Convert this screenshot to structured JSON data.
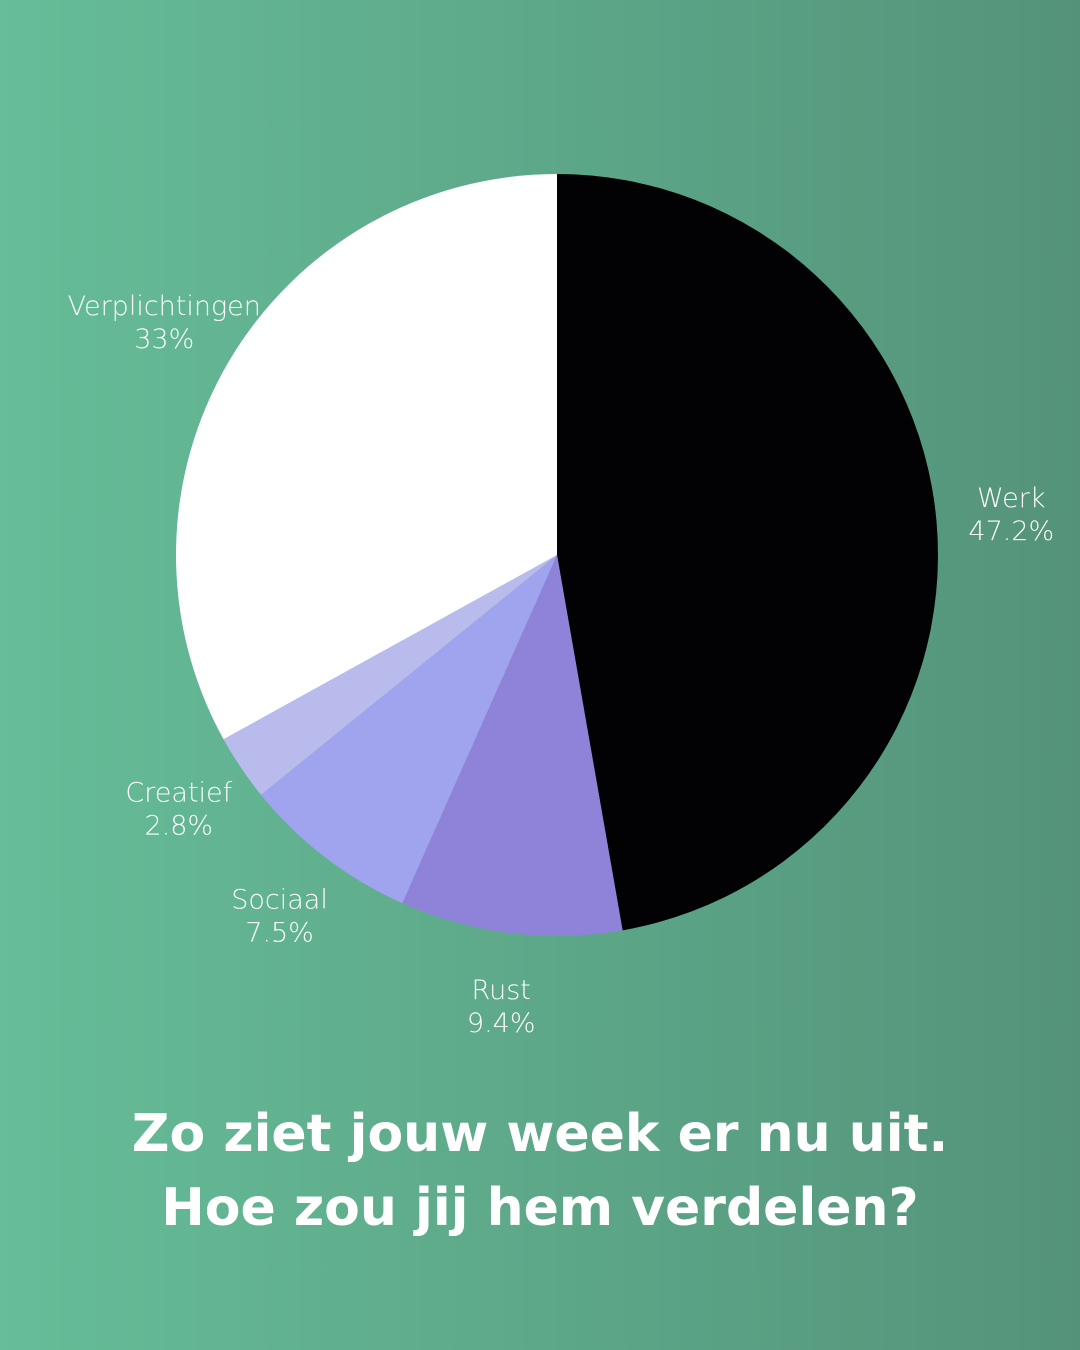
{
  "chart_data": {
    "type": "pie",
    "categories": [
      "Werk",
      "Rust",
      "Sociaal",
      "Creatief",
      "Verplichtingen"
    ],
    "values": [
      47.2,
      9.4,
      7.5,
      2.8,
      33
    ],
    "value_labels": [
      "47.2%",
      "9.4%",
      "7.5%",
      "2.8%",
      "33%"
    ],
    "colors": [
      "#020104",
      "#8f83d9",
      "#a0a3ee",
      "#b8bbec",
      "#ffffff"
    ],
    "title": [
      "Zo ziet jouw week er nu uit.",
      "Hoe zou jij hem verdelen?"
    ]
  }
}
